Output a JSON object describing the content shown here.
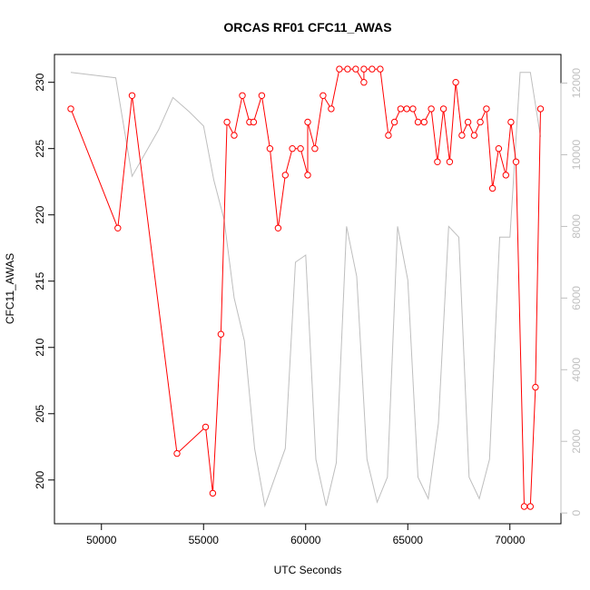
{
  "chart_data": {
    "type": "line",
    "title": "ORCAS RF01 CFC11_AWAS",
    "xlabel": "UTC Seconds",
    "ylabel": "CFC11_AWAS",
    "xlim": [
      47700,
      72500
    ],
    "ylim": [
      196.7,
      232.1
    ],
    "y2lim": [
      -300,
      12800
    ],
    "x_ticks": [
      50000,
      55000,
      60000,
      65000,
      70000
    ],
    "y_ticks": [
      200,
      205,
      210,
      215,
      220,
      225,
      230
    ],
    "y2_ticks": [
      0,
      2000,
      4000,
      6000,
      8000,
      10000,
      12000
    ],
    "grid": false,
    "series": [
      {
        "color": "#ff0000",
        "marker": "open-circle",
        "axis": "left",
        "x": [
          48500,
          50800,
          51500,
          53700,
          55100,
          55450,
          55850,
          56150,
          56500,
          56900,
          57250,
          57450,
          57850,
          58250,
          58650,
          59000,
          59350,
          59750,
          60100,
          60100,
          60450,
          60850,
          61250,
          61650,
          62050,
          62450,
          62850,
          62850,
          63250,
          63650,
          64050,
          64350,
          64650,
          64950,
          65250,
          65500,
          65800,
          66150,
          66450,
          66750,
          67050,
          67350,
          67650,
          67950,
          68250,
          68550,
          68850,
          69150,
          69450,
          69800,
          70050,
          70300,
          70700,
          71000,
          71250,
          71500
        ],
        "y": [
          228,
          219,
          229,
          202,
          204,
          199,
          211,
          227,
          226,
          229,
          227,
          227,
          229,
          225,
          219,
          223,
          225,
          225,
          223,
          227,
          225,
          229,
          228,
          231,
          231,
          231,
          230,
          231,
          231,
          231,
          226,
          227,
          228,
          228,
          228,
          227,
          227,
          228,
          224,
          228,
          224,
          230,
          226,
          227,
          226,
          227,
          228,
          222,
          225,
          223,
          227,
          224,
          198,
          198,
          207,
          228
        ]
      },
      {
        "color": "#bebebe",
        "marker": "none",
        "axis": "right",
        "x": [
          48500,
          50700,
          51500,
          52800,
          53500,
          54300,
          55000,
          55500,
          56000,
          56500,
          57000,
          57500,
          58000,
          58500,
          59000,
          59500,
          60000,
          60500,
          61000,
          61500,
          62000,
          62500,
          63000,
          63500,
          64000,
          64500,
          65000,
          65500,
          66000,
          66500,
          67000,
          67500,
          68000,
          68500,
          69000,
          69500,
          70000,
          70500,
          71000,
          71500
        ],
        "y": [
          12300,
          12150,
          9400,
          10700,
          11600,
          11200,
          10800,
          9300,
          8200,
          6000,
          4800,
          1800,
          200,
          1000,
          1800,
          7000,
          7200,
          1500,
          200,
          1400,
          8000,
          6600,
          1500,
          300,
          1000,
          8000,
          6500,
          1000,
          400,
          2500,
          8000,
          7700,
          1000,
          400,
          1500,
          7700,
          7700,
          12300,
          12300,
          10500
        ]
      }
    ]
  }
}
